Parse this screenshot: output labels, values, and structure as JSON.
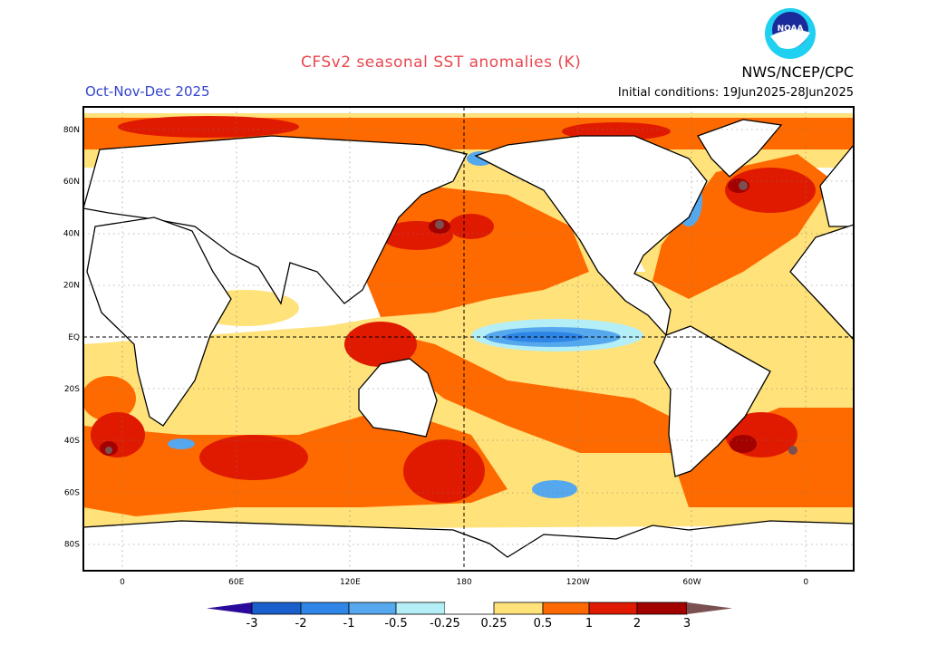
{
  "header": {
    "title": "CFSv2 seasonal SST anomalies (K)",
    "period": "Oct-Nov-Dec 2025",
    "initial_conditions": "Initial conditions: 19Jun2025-28Jun2025",
    "organization": "NWS/NCEP/CPC",
    "logo_text": "NOAA"
  },
  "map": {
    "lat_labels": [
      "80N",
      "60N",
      "40N",
      "20N",
      "EQ",
      "20S",
      "40S",
      "60S",
      "80S"
    ],
    "lon_labels": [
      "0",
      "60E",
      "120E",
      "180",
      "120W",
      "60W",
      "0"
    ]
  },
  "colorbar": {
    "ticks": [
      "-3",
      "-2",
      "-1",
      "-0.5",
      "-0.25",
      "0.25",
      "0.5",
      "1",
      "2",
      "3"
    ],
    "colors": {
      "below_-3": "#2a0a9a",
      "-3_-2": "#1a5fcc",
      "-2_-1": "#2f86e6",
      "-1_-0.5": "#55a8ee",
      "-0.5_-0.25": "#b4eef6",
      "-0.25_0.25": "#ffffff",
      "0.25_0.5": "#ffe27a",
      "0.5_1": "#ff6a00",
      "1_2": "#e01a00",
      "2_3": "#a30000",
      "above_3": "#7a5050"
    }
  }
}
